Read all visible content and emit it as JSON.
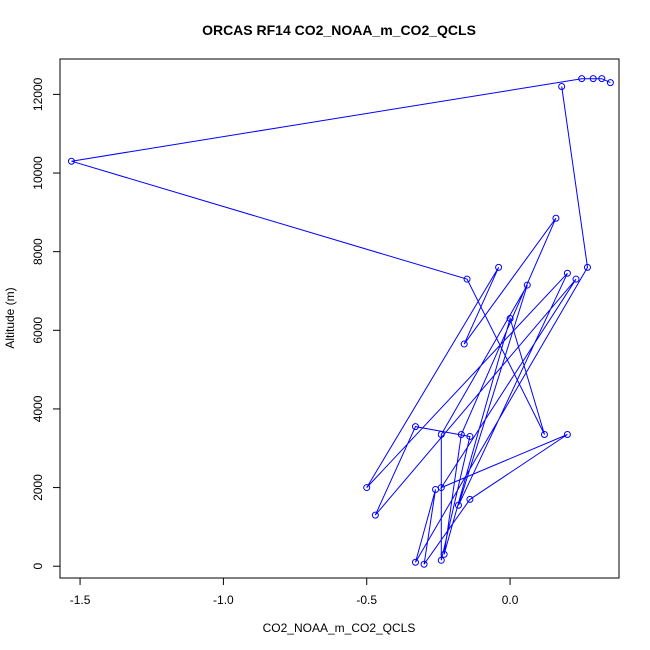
{
  "chart_data": {
    "type": "line",
    "title": "ORCAS RF14 CO2_NOAA_m_CO2_QCLS",
    "xlabel": "CO2_NOAA_m_CO2_QCLS",
    "ylabel": "Altitude (m)",
    "xlim": [
      -1.57,
      0.38
    ],
    "ylim": [
      -300,
      12900
    ],
    "x_ticks": [
      -1.5,
      -1.0,
      -0.5,
      0.0
    ],
    "x_tick_labels": [
      "-1.5",
      "-1.0",
      "-0.5",
      "0.0"
    ],
    "y_ticks": [
      0,
      2000,
      4000,
      6000,
      8000,
      10000,
      12000
    ],
    "y_tick_labels": [
      "0",
      "2000",
      "4000",
      "6000",
      "8000",
      "10000",
      "12000"
    ],
    "grid": false,
    "legend": "none",
    "series": [
      {
        "color": "#0000ff",
        "marker": "open-circle",
        "points": [
          {
            "x": 0.35,
            "y": 12300
          },
          {
            "x": 0.32,
            "y": 12400
          },
          {
            "x": 0.29,
            "y": 12400
          },
          {
            "x": 0.25,
            "y": 12400
          },
          {
            "x": -1.53,
            "y": 10300
          },
          {
            "x": -0.15,
            "y": 7300
          },
          {
            "x": 0.12,
            "y": 3350
          },
          {
            "x": 0.0,
            "y": 6300
          },
          {
            "x": -0.23,
            "y": 300
          },
          {
            "x": -0.17,
            "y": 3350
          },
          {
            "x": 0.16,
            "y": 8850
          },
          {
            "x": -0.16,
            "y": 5650
          },
          {
            "x": -0.04,
            "y": 7600
          },
          {
            "x": -0.5,
            "y": 2000
          },
          {
            "x": 0.2,
            "y": 7450
          },
          {
            "x": -0.18,
            "y": 1550
          },
          {
            "x": 0.06,
            "y": 7150
          },
          {
            "x": -0.24,
            "y": 3350
          },
          {
            "x": -0.24,
            "y": 150
          },
          {
            "x": -0.14,
            "y": 3300
          },
          {
            "x": -0.33,
            "y": 3550
          },
          {
            "x": -0.47,
            "y": 1300
          },
          {
            "x": 0.23,
            "y": 7300
          },
          {
            "x": -0.24,
            "y": 2000
          },
          {
            "x": 0.2,
            "y": 3350
          },
          {
            "x": -0.14,
            "y": 1700
          },
          {
            "x": -0.3,
            "y": 50
          },
          {
            "x": -0.26,
            "y": 1950
          },
          {
            "x": -0.33,
            "y": 100
          },
          {
            "x": 0.27,
            "y": 7600
          },
          {
            "x": 0.18,
            "y": 12200
          }
        ]
      }
    ]
  },
  "colors": {
    "series": "#0000ff",
    "axes": "#000000",
    "background": "#ffffff"
  }
}
